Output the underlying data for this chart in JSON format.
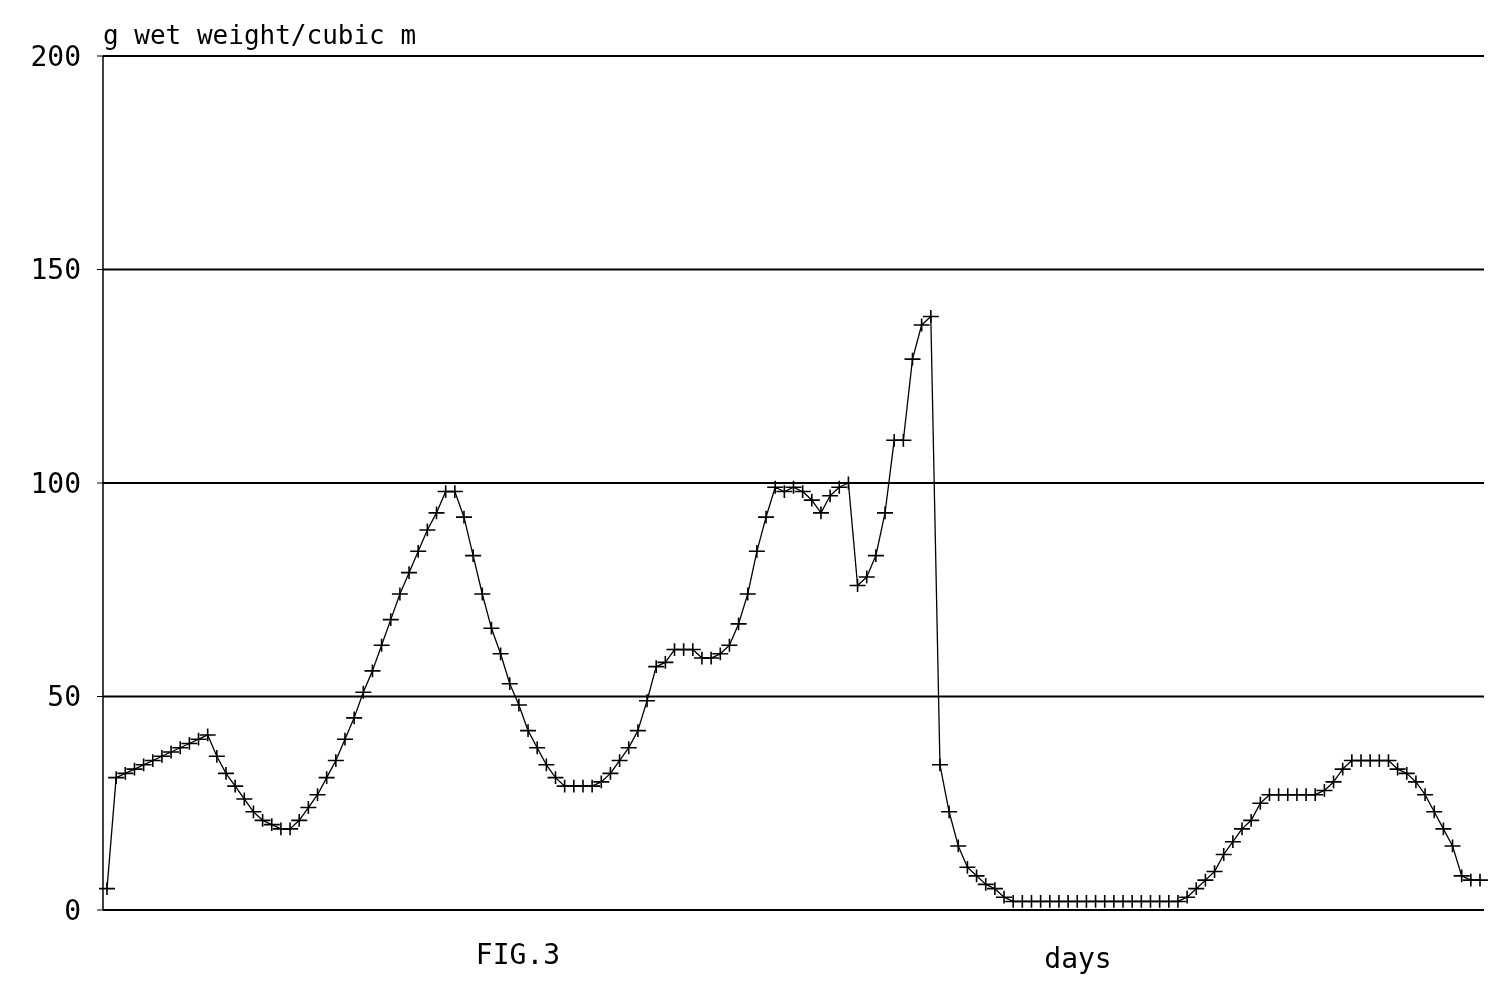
{
  "chart_data": {
    "type": "line",
    "ylabel": "g wet weight/cubic m",
    "xlabel": "days",
    "annotations": [
      "FIG.3"
    ],
    "categories": [
      null,
      null,
      null,
      null,
      null,
      null,
      null,
      null,
      null,
      null,
      null,
      null,
      null,
      null,
      null,
      null,
      null,
      null,
      null,
      null,
      null,
      null,
      null,
      null,
      null,
      null,
      null,
      null,
      null,
      null,
      null,
      null,
      null,
      null,
      null,
      null,
      null,
      null,
      null,
      null,
      null,
      null,
      null,
      null,
      null,
      null,
      null,
      null,
      null,
      null,
      null,
      null,
      null,
      null,
      null,
      null,
      null,
      null,
      null,
      null,
      null,
      null,
      null,
      null,
      null,
      null,
      null,
      null,
      null,
      null,
      null,
      null,
      null,
      null,
      null,
      null,
      null,
      null,
      null,
      null,
      null,
      null,
      null,
      null,
      null,
      null,
      null,
      null,
      null,
      null,
      null,
      null,
      null,
      null,
      null,
      null,
      null,
      null,
      null,
      null,
      null,
      null,
      null,
      null,
      null,
      null,
      null,
      null,
      null,
      null,
      null,
      null,
      null,
      null,
      null,
      null,
      null,
      null,
      null,
      null,
      null,
      null,
      null,
      null,
      null,
      null,
      null,
      null,
      null,
      null,
      null,
      null,
      null,
      null,
      null,
      null,
      null,
      null,
      null,
      null,
      null,
      null,
      null,
      null,
      null,
      null,
      null,
      null,
      null,
      null,
      null
    ],
    "series": [
      {
        "color": "#000000",
        "values": [
          5,
          31,
          32,
          33,
          34,
          35,
          36,
          37,
          38,
          39,
          40,
          41,
          36,
          32,
          29,
          26,
          23,
          21,
          20,
          19,
          19,
          21,
          24,
          27,
          31,
          35,
          40,
          45,
          51,
          56,
          62,
          68,
          74,
          79,
          84,
          89,
          93,
          98,
          98,
          92,
          83,
          74,
          66,
          60,
          53,
          48,
          42,
          38,
          34,
          31,
          29,
          29,
          29,
          29,
          30,
          32,
          35,
          38,
          42,
          49,
          57,
          58,
          61,
          61,
          61,
          59,
          59,
          60,
          62,
          67,
          74,
          84,
          92,
          99,
          98,
          99,
          98,
          96,
          93,
          97,
          99,
          100,
          76,
          78,
          83,
          93,
          110,
          110,
          129,
          137,
          139,
          34,
          23,
          15,
          10,
          8,
          6,
          5,
          3,
          2,
          2,
          2,
          2,
          2,
          2,
          2,
          2,
          2,
          2,
          2,
          2,
          2,
          2,
          2,
          2,
          2,
          2,
          2,
          3,
          5,
          7,
          9,
          13,
          16,
          19,
          21,
          25,
          27,
          27,
          27,
          27,
          27,
          27,
          28,
          30,
          33,
          35,
          35,
          35,
          35,
          35,
          33,
          32,
          30,
          27,
          23,
          19,
          15,
          8,
          7,
          7
        ]
      }
    ],
    "ylim": [
      0,
      200
    ],
    "yticks": [
      0,
      50,
      100,
      150,
      200
    ],
    "grid": "y",
    "marker": "cross",
    "line_style": "solid"
  }
}
